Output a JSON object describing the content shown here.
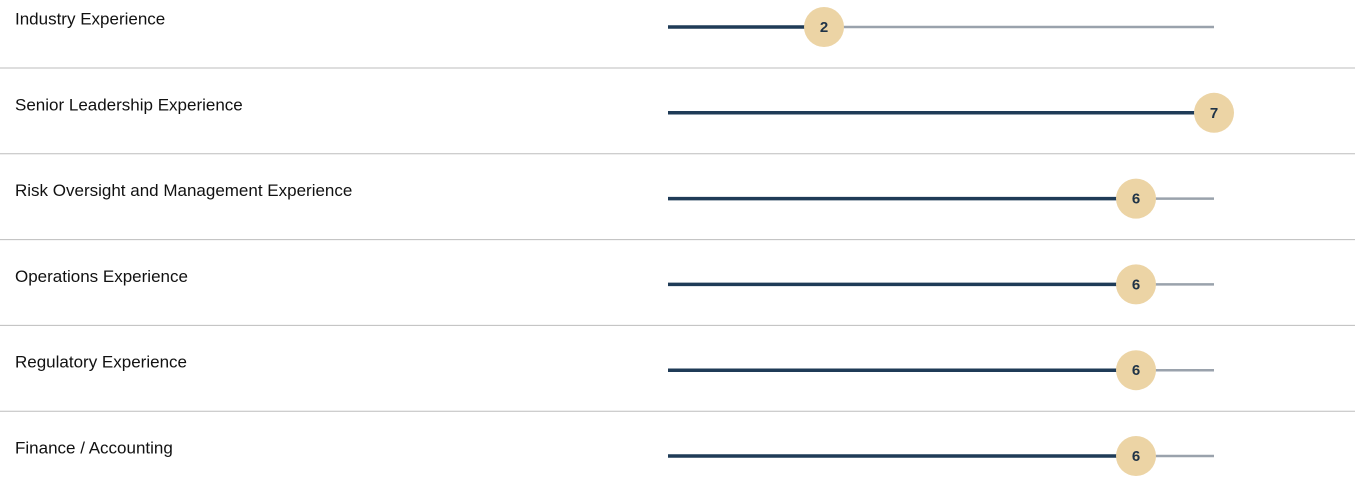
{
  "chart_data": {
    "type": "bar",
    "orientation": "horizontal",
    "categories": [
      "Industry Experience",
      "Senior Leadership Experience",
      "Risk Oversight and Management Experience",
      "Operations Experience",
      "Regulatory Experience",
      "Finance / Accounting"
    ],
    "values": [
      2,
      7,
      6,
      6,
      6,
      6
    ],
    "xlim": [
      0,
      7
    ],
    "color": "#1f3b57",
    "track_color": "#9aa2ac",
    "badge_color": "#ecd4a5"
  }
}
